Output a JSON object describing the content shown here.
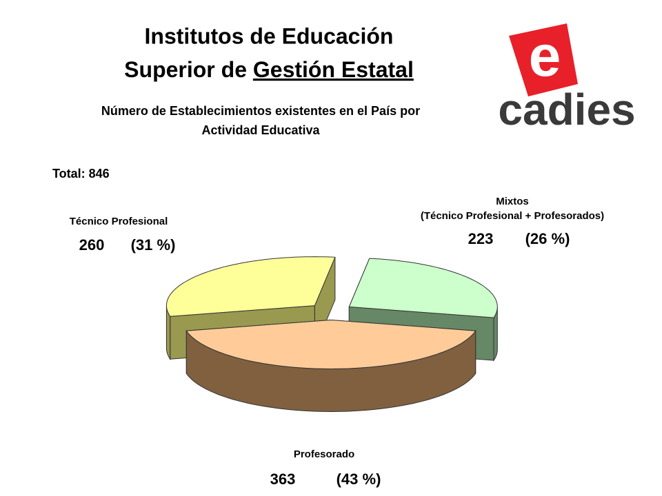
{
  "chart_data": {
    "type": "pie3d",
    "title": {
      "line1": "Institutos de Educación",
      "line2": "Superior de",
      "line2_underlined": "Gestión Estatal"
    },
    "subtitle": [
      "Número de Establecimientos existentes en el País por",
      "Actividad Educativa"
    ],
    "total_label": "Total: 846",
    "logo": {
      "mark": "e",
      "text": "cadies"
    },
    "categories": [
      [
        "Técnico Profesional"
      ],
      [
        "Mixtos",
        "(Técnico Profesional + Profesorados)"
      ],
      [
        "Profesorado"
      ]
    ],
    "values": [
      260,
      223,
      363
    ],
    "percent_labels": [
      "(31 %)",
      "(26 %)",
      "(43 %)"
    ],
    "colors": [
      "#ffff99",
      "#ccffcc",
      "#ffcc99"
    ],
    "side_colors": [
      "#999950",
      "#668866",
      "#80603f"
    ]
  }
}
